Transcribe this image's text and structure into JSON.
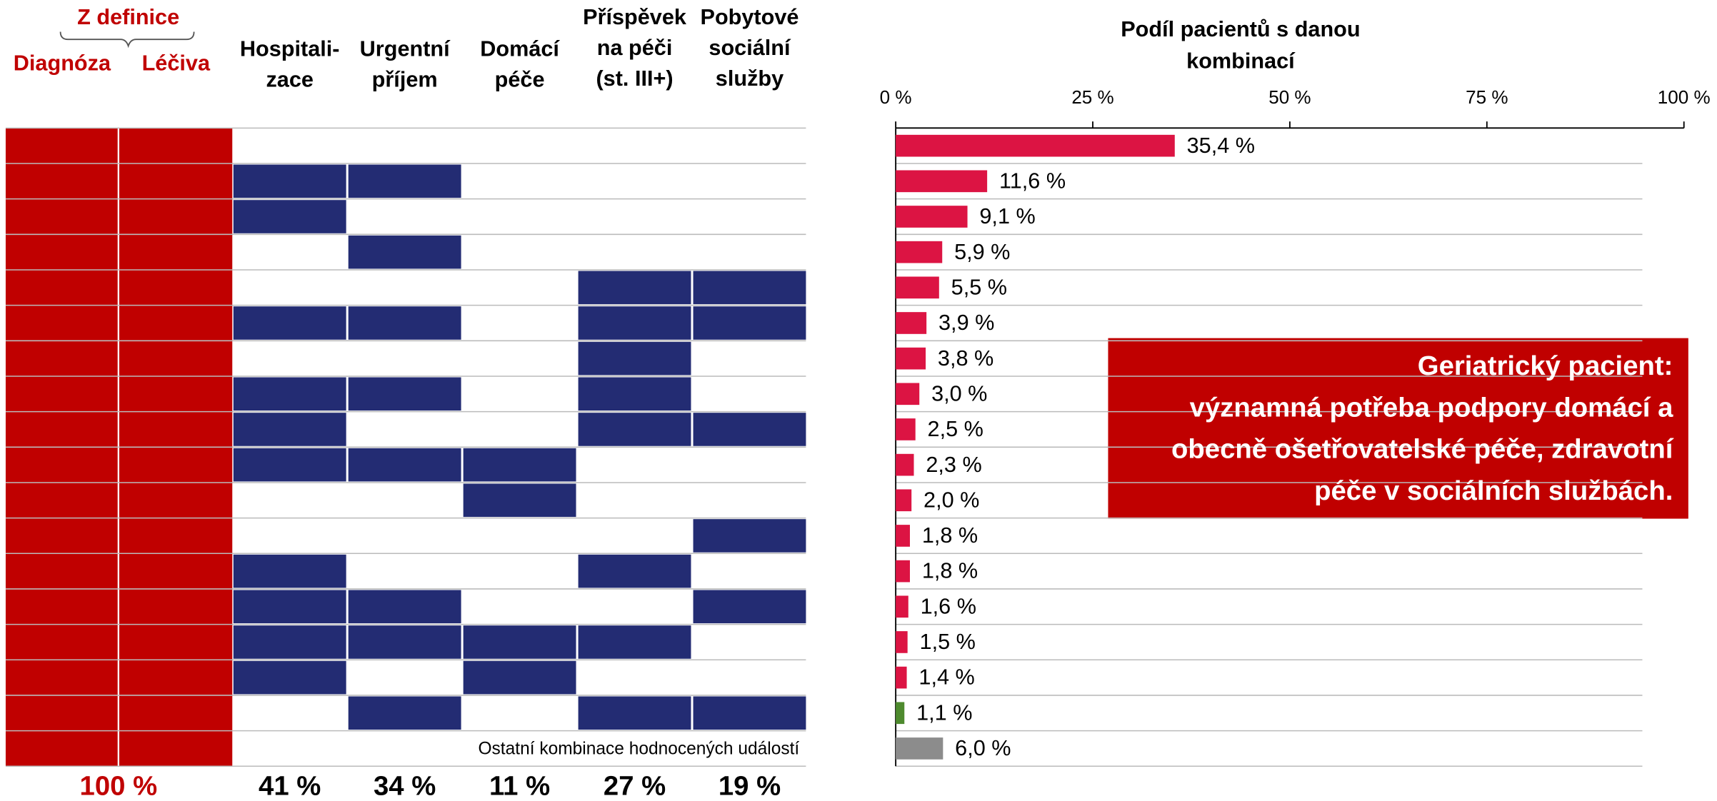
{
  "chart_data": {
    "type": "bar",
    "title": [
      "Podíl pacientů s danou",
      "kombinací"
    ],
    "definition_header": "Z definice",
    "headers": [
      [
        "Diagnóza"
      ],
      [
        "Léčiva"
      ],
      [
        "Hospitali-",
        "zace"
      ],
      [
        "Urgentní",
        "příjem"
      ],
      [
        "Domácí",
        "péče"
      ],
      [
        "Příspěvek",
        "na péči",
        "(st. III+)"
      ],
      [
        "Pobytové",
        "sociální",
        "služby"
      ]
    ],
    "matrix": [
      [
        false,
        false,
        false,
        false,
        false
      ],
      [
        true,
        true,
        false,
        false,
        false
      ],
      [
        true,
        false,
        false,
        false,
        false
      ],
      [
        false,
        true,
        false,
        false,
        false
      ],
      [
        false,
        false,
        false,
        true,
        true
      ],
      [
        true,
        true,
        false,
        true,
        true
      ],
      [
        false,
        false,
        false,
        true,
        false
      ],
      [
        true,
        true,
        false,
        true,
        false
      ],
      [
        true,
        false,
        false,
        true,
        true
      ],
      [
        true,
        true,
        true,
        false,
        false
      ],
      [
        false,
        false,
        true,
        false,
        false
      ],
      [
        false,
        false,
        false,
        false,
        true
      ],
      [
        true,
        false,
        false,
        true,
        false
      ],
      [
        true,
        true,
        false,
        false,
        true
      ],
      [
        true,
        true,
        true,
        true,
        false
      ],
      [
        true,
        false,
        true,
        false,
        false
      ],
      [
        false,
        true,
        false,
        true,
        true
      ]
    ],
    "other_label": "Ostatní kombinace hodnocených událostí",
    "values": [
      35.4,
      11.6,
      9.1,
      5.9,
      5.5,
      3.9,
      3.8,
      3.0,
      2.5,
      2.3,
      2.0,
      1.8,
      1.8,
      1.6,
      1.5,
      1.4,
      1.1,
      6.0
    ],
    "value_labels": [
      "35,4 %",
      "11,6 %",
      "9,1 %",
      "5,9 %",
      "5,5 %",
      "3,9 %",
      "3,8 %",
      "3,0 %",
      "2,5 %",
      "2,3 %",
      "2,0 %",
      "1,8 %",
      "1,8 %",
      "1,6 %",
      "1,5 %",
      "1,4 %",
      "1,1 %",
      "6,0 %"
    ],
    "colors": [
      "#dc1443",
      "#dc1443",
      "#dc1443",
      "#dc1443",
      "#dc1443",
      "#dc1443",
      "#dc1443",
      "#dc1443",
      "#dc1443",
      "#dc1443",
      "#dc1443",
      "#dc1443",
      "#dc1443",
      "#dc1443",
      "#dc1443",
      "#dc1443",
      "#4e8a2e",
      "#8c8c8c"
    ],
    "definition_color": "#c00000",
    "matrix_color": "#232c73",
    "xlim": [
      0,
      100
    ],
    "xticks": [
      {
        "value": 0,
        "label": "0 %"
      },
      {
        "value": 25,
        "label": "25 %"
      },
      {
        "value": 50,
        "label": "50 %"
      },
      {
        "value": 75,
        "label": "75 %"
      },
      {
        "value": 100,
        "label": "100 %"
      }
    ],
    "definition_total": {
      "value": 100,
      "label": "100 %"
    },
    "column_totals": [
      41,
      34,
      11,
      27,
      19
    ],
    "column_total_labels": [
      "41 %",
      "34 %",
      "11 %",
      "27 %",
      "19 %"
    ],
    "annotation": [
      "Geriatrický pacient:",
      "významná potřeba podpory domácí a",
      "obecně ošetřovatelské péče, zdravotní",
      "péče v sociálních službách."
    ]
  }
}
